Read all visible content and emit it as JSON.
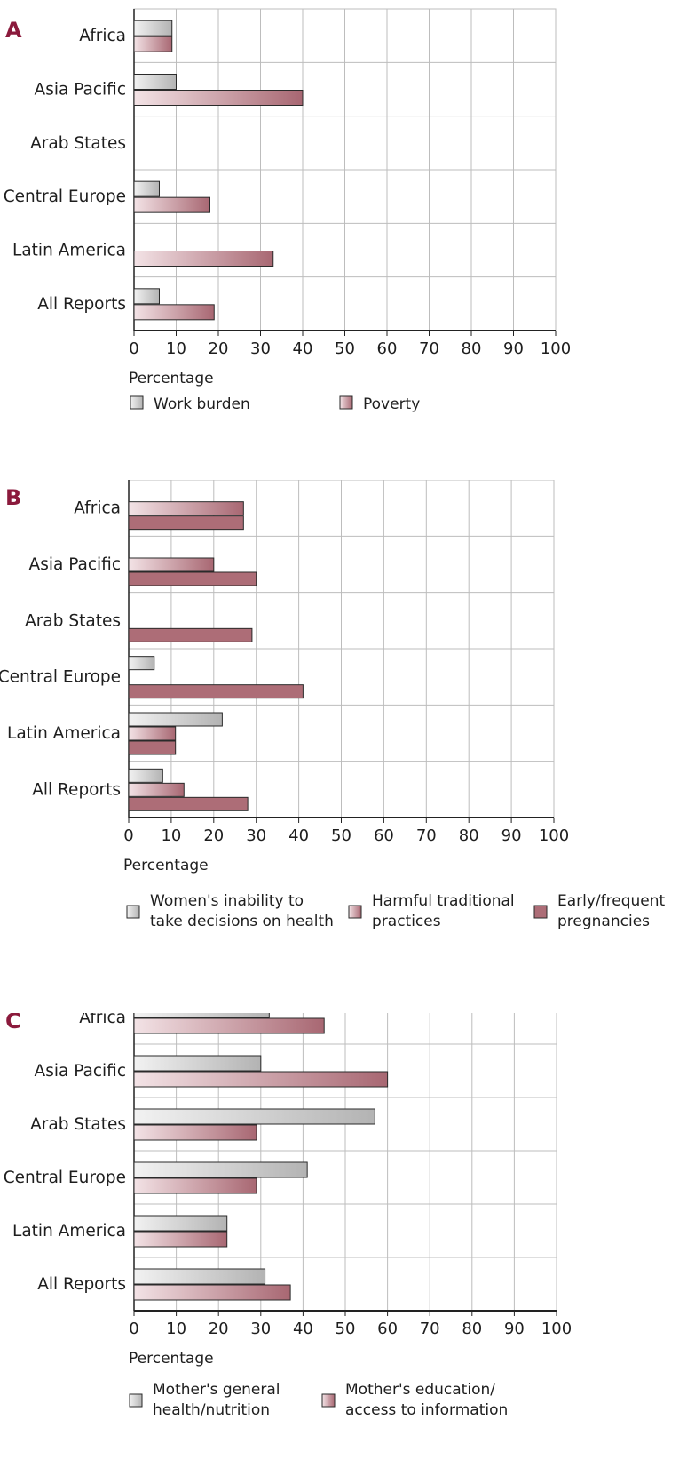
{
  "colors": {
    "label": "#8b1a3c",
    "grid": "#bdbdbd",
    "axis": "#222222",
    "grey_bar": [
      "#f2f2f2",
      "#b3b3b3"
    ],
    "pink_bar": [
      "#f3e3e6",
      "#a86772"
    ],
    "dark_bar": "#ad6d77"
  },
  "chart_data": [
    {
      "type": "bar",
      "orientation": "horizontal",
      "panel_label": "A",
      "categories": [
        "Africa",
        "Asia Pacific",
        "Arab States",
        "Central Europe",
        "Latin America",
        "All Reports"
      ],
      "series": [
        {
          "name": "Work burden",
          "style": "grey",
          "values": [
            9,
            10,
            null,
            6,
            null,
            6
          ]
        },
        {
          "name": "Poverty",
          "style": "pink",
          "values": [
            9,
            40,
            null,
            18,
            33,
            19
          ]
        }
      ],
      "xlabel": "Percentage",
      "xlim": [
        0,
        100
      ],
      "xticks": [
        "0",
        "10",
        "20",
        "30",
        "40",
        "50",
        "60",
        "70",
        "80",
        "90",
        "100"
      ],
      "grid": true,
      "legend": [
        {
          "lines": [
            "Work burden"
          ],
          "style": "grey"
        },
        {
          "lines": [
            "Poverty"
          ],
          "style": "pink"
        }
      ],
      "legend_position": "bottom"
    },
    {
      "type": "bar",
      "orientation": "horizontal",
      "panel_label": "B",
      "categories": [
        "Africa",
        "Asia Pacific",
        "Arab States",
        "Central Europe",
        "Latin America",
        "All Reports"
      ],
      "series": [
        {
          "name": "Women's inability to take decisions on health",
          "style": "grey",
          "values": [
            null,
            null,
            null,
            6,
            22,
            8
          ]
        },
        {
          "name": "Harmful traditional practices",
          "style": "pink",
          "values": [
            27,
            20,
            null,
            null,
            11,
            13
          ]
        },
        {
          "name": "Early/frequent pregnancies",
          "style": "dark",
          "values": [
            27,
            30,
            29,
            41,
            11,
            28
          ]
        }
      ],
      "xlabel": "Percentage",
      "xlim": [
        0,
        100
      ],
      "xticks": [
        "0",
        "10",
        "20",
        "30",
        "40",
        "50",
        "60",
        "70",
        "80",
        "90",
        "100"
      ],
      "grid": true,
      "legend": [
        {
          "lines": [
            "Women's inability to",
            "take decisions on health"
          ],
          "style": "grey"
        },
        {
          "lines": [
            "Harmful traditional",
            "practices"
          ],
          "style": "pink"
        },
        {
          "lines": [
            "Early/frequent",
            "pregnancies"
          ],
          "style": "dark"
        }
      ],
      "legend_position": "bottom"
    },
    {
      "type": "bar",
      "orientation": "horizontal",
      "panel_label": "C",
      "categories": [
        "Africa",
        "Asia Pacific",
        "Arab States",
        "Central Europe",
        "Latin America",
        "All Reports"
      ],
      "series": [
        {
          "name": "Mother's general health/nutrition",
          "style": "grey",
          "values": [
            32,
            30,
            57,
            41,
            22,
            31
          ]
        },
        {
          "name": "Mother's education/ access to information",
          "style": "pink",
          "values": [
            45,
            60,
            29,
            29,
            22,
            37
          ]
        }
      ],
      "xlabel": "Percentage",
      "xlim": [
        0,
        100
      ],
      "xticks": [
        "0",
        "10",
        "20",
        "30",
        "40",
        "50",
        "60",
        "70",
        "80",
        "90",
        "100"
      ],
      "grid": true,
      "legend": [
        {
          "lines": [
            "Mother's general",
            "health/nutrition"
          ],
          "style": "grey"
        },
        {
          "lines": [
            "Mother's education/",
            "access to information"
          ],
          "style": "pink"
        }
      ],
      "legend_position": "bottom"
    }
  ]
}
